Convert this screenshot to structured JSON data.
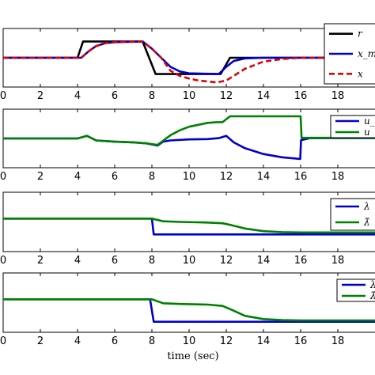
{
  "chart_data": [
    {
      "type": "line",
      "xlim": [
        0,
        20
      ],
      "xticks": [
        0,
        2,
        4,
        6,
        8,
        10,
        12,
        14,
        16,
        18
      ],
      "legend_position": "right",
      "series": [
        {
          "name": "r",
          "color": "#000000",
          "dash": false,
          "points": [
            [
              0,
              0
            ],
            [
              4,
              0
            ],
            [
              4.3,
              0.5
            ],
            [
              7.5,
              0.5
            ],
            [
              8.2,
              -0.5
            ],
            [
              11.7,
              -0.5
            ],
            [
              12.2,
              0
            ],
            [
              20,
              0
            ]
          ]
        },
        {
          "name": "x_m",
          "color": "#0000cc",
          "dash": false,
          "points": [
            [
              0,
              0
            ],
            [
              4.2,
              0
            ],
            [
              4.6,
              0.2
            ],
            [
              5,
              0.36
            ],
            [
              5.5,
              0.45
            ],
            [
              6,
              0.48
            ],
            [
              7.5,
              0.5
            ],
            [
              8,
              0.28
            ],
            [
              8.5,
              0
            ],
            [
              9,
              -0.28
            ],
            [
              9.5,
              -0.42
            ],
            [
              10,
              -0.48
            ],
            [
              11.6,
              -0.5
            ],
            [
              12,
              -0.28
            ],
            [
              12.4,
              -0.1
            ],
            [
              13,
              -0.02
            ],
            [
              14,
              0
            ],
            [
              20,
              0
            ]
          ]
        },
        {
          "name": "x",
          "color": "#dd0000",
          "dash": true,
          "points": [
            [
              0,
              0
            ],
            [
              4.2,
              0
            ],
            [
              4.6,
              0.2
            ],
            [
              5,
              0.36
            ],
            [
              5.5,
              0.45
            ],
            [
              6,
              0.48
            ],
            [
              7.5,
              0.5
            ],
            [
              8,
              0.28
            ],
            [
              8.5,
              0
            ],
            [
              9,
              -0.4
            ],
            [
              9.5,
              -0.56
            ],
            [
              10,
              -0.64
            ],
            [
              10.5,
              -0.7
            ],
            [
              11,
              -0.73
            ],
            [
              11.5,
              -0.76
            ],
            [
              12,
              -0.7
            ],
            [
              12.5,
              -0.52
            ],
            [
              13,
              -0.34
            ],
            [
              14,
              -0.12
            ],
            [
              15,
              -0.04
            ],
            [
              16,
              0
            ],
            [
              20,
              0
            ]
          ]
        }
      ]
    },
    {
      "type": "line",
      "xlim": [
        0,
        20
      ],
      "xticks": [
        0,
        2,
        4,
        6,
        8,
        10,
        12,
        14,
        16,
        18
      ],
      "legend_position": "right",
      "series": [
        {
          "name": "u_c",
          "color": "#0000cc",
          "dash": false,
          "points": [
            [
              0,
              0
            ],
            [
              4,
              0
            ],
            [
              4.5,
              0.08
            ],
            [
              5,
              -0.06
            ],
            [
              6,
              -0.1
            ],
            [
              7,
              -0.12
            ],
            [
              7.7,
              -0.15
            ],
            [
              8.3,
              -0.22
            ],
            [
              8.6,
              -0.1
            ],
            [
              9,
              -0.06
            ],
            [
              10,
              -0.03
            ],
            [
              11,
              -0.02
            ],
            [
              11.6,
              0.01
            ],
            [
              12,
              0.08
            ],
            [
              12.4,
              -0.12
            ],
            [
              13,
              -0.3
            ],
            [
              14,
              -0.48
            ],
            [
              15,
              -0.58
            ],
            [
              15.98,
              -0.63
            ],
            [
              16.02,
              -0.05
            ],
            [
              16.5,
              0.01
            ],
            [
              20,
              0.01
            ]
          ]
        },
        {
          "name": "u_c",
          "color": "#008000",
          "dash": false,
          "points": [
            [
              0,
              0
            ],
            [
              4,
              0
            ],
            [
              4.5,
              0.08
            ],
            [
              5,
              -0.06
            ],
            [
              6,
              -0.1
            ],
            [
              7,
              -0.12
            ],
            [
              7.7,
              -0.15
            ],
            [
              8.3,
              -0.2
            ],
            [
              9,
              0.1
            ],
            [
              9.5,
              0.25
            ],
            [
              10,
              0.36
            ],
            [
              11,
              0.48
            ],
            [
              11.5,
              0.5
            ],
            [
              11.8,
              0.5
            ],
            [
              12.2,
              0.68
            ],
            [
              16,
              0.68
            ],
            [
              16.05,
              0.02
            ],
            [
              20,
              0.02
            ]
          ]
        }
      ]
    },
    {
      "type": "line",
      "xlim": [
        0,
        20
      ],
      "xticks": [
        0,
        2,
        4,
        6,
        8,
        10,
        12,
        14,
        16,
        18
      ],
      "legend_position": "right",
      "series": [
        {
          "name": "λ",
          "color": "#0000cc",
          "dash": false,
          "points": [
            [
              0,
              0
            ],
            [
              8,
              0
            ],
            [
              8.1,
              -0.48
            ],
            [
              20,
              -0.48
            ]
          ]
        },
        {
          "name": "λ̂",
          "color": "#008000",
          "dash": false,
          "points": [
            [
              0,
              0
            ],
            [
              8,
              0
            ],
            [
              8.6,
              -0.08
            ],
            [
              9.5,
              -0.1
            ],
            [
              11,
              -0.12
            ],
            [
              11.8,
              -0.14
            ],
            [
              12.3,
              -0.2
            ],
            [
              13,
              -0.3
            ],
            [
              14,
              -0.38
            ],
            [
              15,
              -0.41
            ],
            [
              16,
              -0.42
            ],
            [
              20,
              -0.42
            ]
          ]
        }
      ]
    },
    {
      "type": "line",
      "xlim": [
        0,
        20
      ],
      "xticks": [
        0,
        2,
        4,
        6,
        8,
        10,
        12,
        14,
        16,
        18
      ],
      "xlabel": "time (sec)",
      "legend_position": "right",
      "series": [
        {
          "name": "λ",
          "color": "#0000cc",
          "dash": false,
          "points": [
            [
              0,
              0
            ],
            [
              7.9,
              0
            ],
            [
              8.1,
              -0.68
            ],
            [
              20,
              -0.68
            ]
          ]
        },
        {
          "name": "λ̂",
          "color": "#008000",
          "dash": false,
          "points": [
            [
              0,
              0
            ],
            [
              8,
              0
            ],
            [
              8.6,
              -0.12
            ],
            [
              9.5,
              -0.14
            ],
            [
              11,
              -0.16
            ],
            [
              11.8,
              -0.2
            ],
            [
              12.3,
              -0.32
            ],
            [
              13,
              -0.5
            ],
            [
              14,
              -0.6
            ],
            [
              15,
              -0.63
            ],
            [
              16,
              -0.64
            ],
            [
              20,
              -0.64
            ]
          ]
        }
      ]
    }
  ]
}
